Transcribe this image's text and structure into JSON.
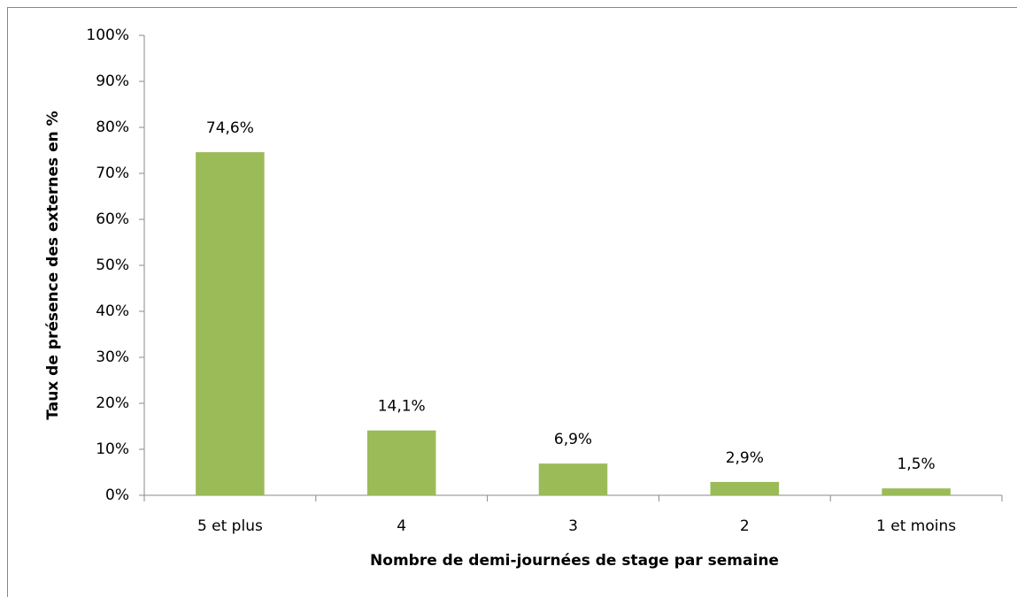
{
  "chart_data": {
    "type": "bar",
    "xlabel": "Nombre de demi-journées de stage par semaine",
    "ylabel": "Taux de présence des externes en %",
    "categories": [
      "5 et plus",
      "4",
      "3",
      "2",
      "1 et moins"
    ],
    "values": [
      74.6,
      14.1,
      6.9,
      2.9,
      1.5
    ],
    "value_labels": [
      "74,6%",
      "14,1%",
      "6,9%",
      "2,9%",
      "1,5%"
    ],
    "color": "#9bbb59",
    "ylim": [
      0,
      100
    ],
    "yticks": [
      {
        "value": 0,
        "label": "0%"
      },
      {
        "value": 10,
        "label": "10%"
      },
      {
        "value": 20,
        "label": "20%"
      },
      {
        "value": 30,
        "label": "30%"
      },
      {
        "value": 40,
        "label": "40%"
      },
      {
        "value": 50,
        "label": "50%"
      },
      {
        "value": 60,
        "label": "60%"
      },
      {
        "value": 70,
        "label": "70%"
      },
      {
        "value": 80,
        "label": "80%"
      },
      {
        "value": 90,
        "label": "90%"
      },
      {
        "value": 100,
        "label": "100%"
      }
    ],
    "grid": false
  }
}
